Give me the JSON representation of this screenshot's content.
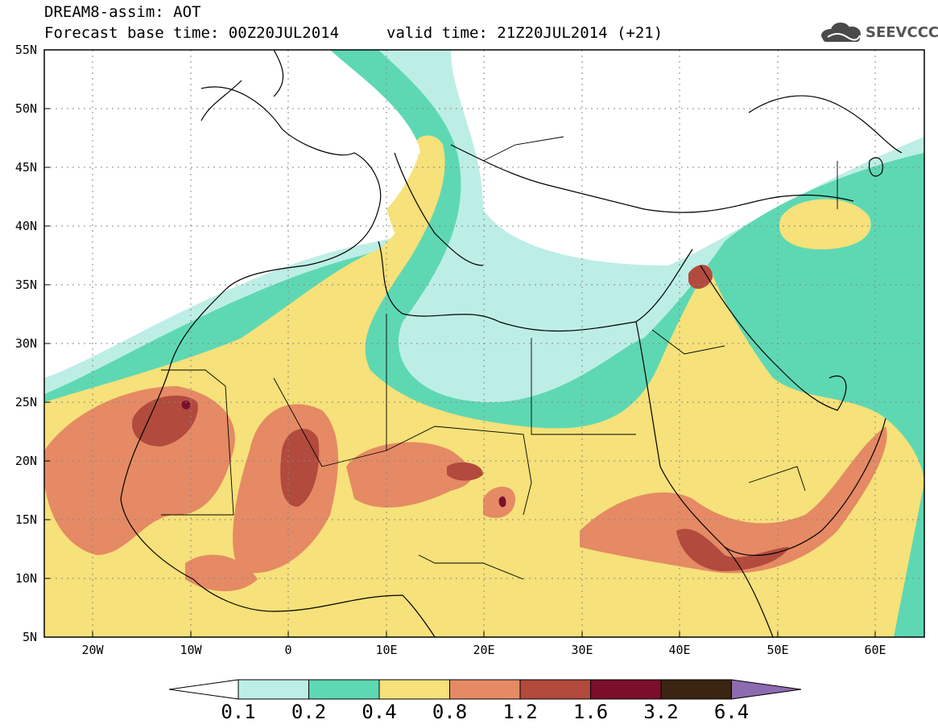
{
  "header": {
    "title": "DREAM8-assim: AOT",
    "base_time": "Forecast base time: 00Z20JUL2014",
    "valid_time": "valid time: 21Z20JUL2014 (+21)",
    "logo_text": "SEEVCCC"
  },
  "map": {
    "lat_labels": [
      "55N",
      "50N",
      "45N",
      "40N",
      "35N",
      "30N",
      "25N",
      "20N",
      "15N",
      "10N",
      "5N"
    ],
    "lon_labels": [
      "20W",
      "10W",
      "0",
      "10E",
      "20E",
      "30E",
      "40E",
      "50E",
      "60E"
    ],
    "lat_range": [
      5,
      55
    ],
    "lon_range": [
      -25,
      65
    ]
  },
  "legend": {
    "levels": [
      "0.1",
      "0.2",
      "0.4",
      "0.8",
      "1.2",
      "1.6",
      "3.2",
      "6.4"
    ],
    "colors": [
      "#ffffff",
      "#bdeee6",
      "#5ed8b3",
      "#f6e17a",
      "#e58a64",
      "#b24a3d",
      "#7b0f2b",
      "#3b2412",
      "#8c6bb0"
    ]
  }
}
